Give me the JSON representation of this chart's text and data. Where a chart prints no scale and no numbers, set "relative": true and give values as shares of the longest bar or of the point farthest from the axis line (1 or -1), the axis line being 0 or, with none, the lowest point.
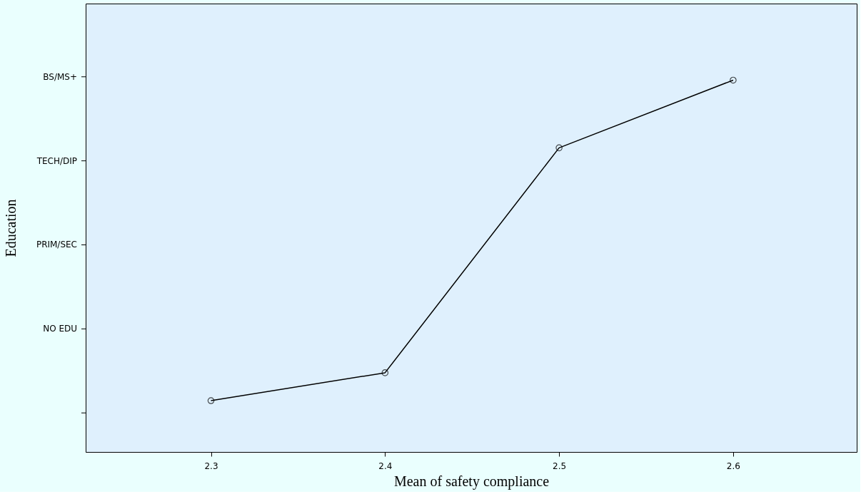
{
  "chart_data": {
    "type": "line",
    "xlabel": "Mean of safety compliance",
    "ylabel": "Education",
    "x": [
      2.3,
      2.4,
      2.5,
      2.6
    ],
    "series": [
      {
        "color": "#000000",
        "values": [
          0.138,
          0.213,
          0.818,
          1
        ]
      }
    ],
    "relative": true,
    "xlim": [
      2.228,
      2.671
    ],
    "xticks": [
      2.3,
      2.4,
      2.5,
      2.6
    ],
    "annotations": [
      "NO EDU",
      "PRIM/SEC",
      "TECH/DIP",
      "BS/MS+"
    ],
    "marker": "circle",
    "line_style": "solid",
    "grid": false
  }
}
